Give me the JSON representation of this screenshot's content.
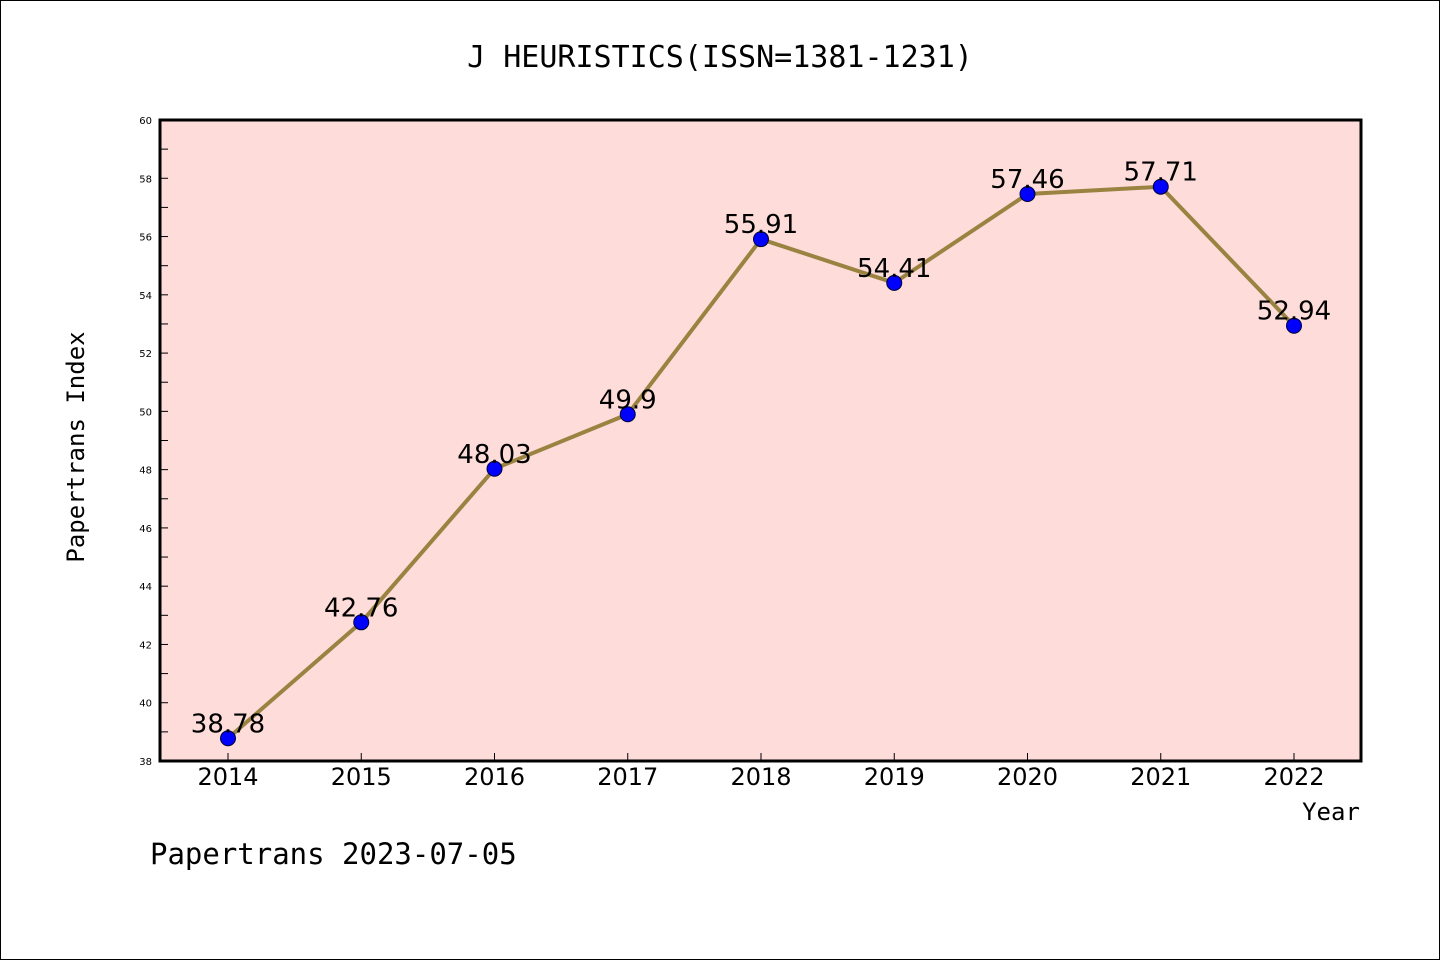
{
  "chart_data": {
    "type": "line",
    "title": "J HEURISTICS(ISSN=1381-1231)",
    "xlabel": "Year",
    "ylabel": "Papertrans Index",
    "categories": [
      "2014",
      "2015",
      "2016",
      "2017",
      "2018",
      "2019",
      "2020",
      "2021",
      "2022"
    ],
    "series": [
      {
        "values": [
          38.78,
          42.76,
          48.03,
          49.9,
          55.91,
          54.41,
          57.46,
          57.71,
          52.94
        ],
        "data_labels": [
          "38.78",
          "42.76",
          "48.03",
          "49.9",
          "55.91",
          "54.41",
          "57.46",
          "57.71",
          "52.94"
        ]
      }
    ],
    "ylim": [
      38,
      60
    ],
    "yticks": [
      "38",
      "40",
      "42",
      "44",
      "46",
      "48",
      "50",
      "52",
      "54",
      "56",
      "58",
      "60"
    ],
    "grid": false,
    "colors": {
      "plot_background": "#fddcda",
      "line": "#9a8240",
      "marker": "#0000ff",
      "axes": "#000000"
    }
  },
  "footer": "Papertrans 2023-07-05"
}
